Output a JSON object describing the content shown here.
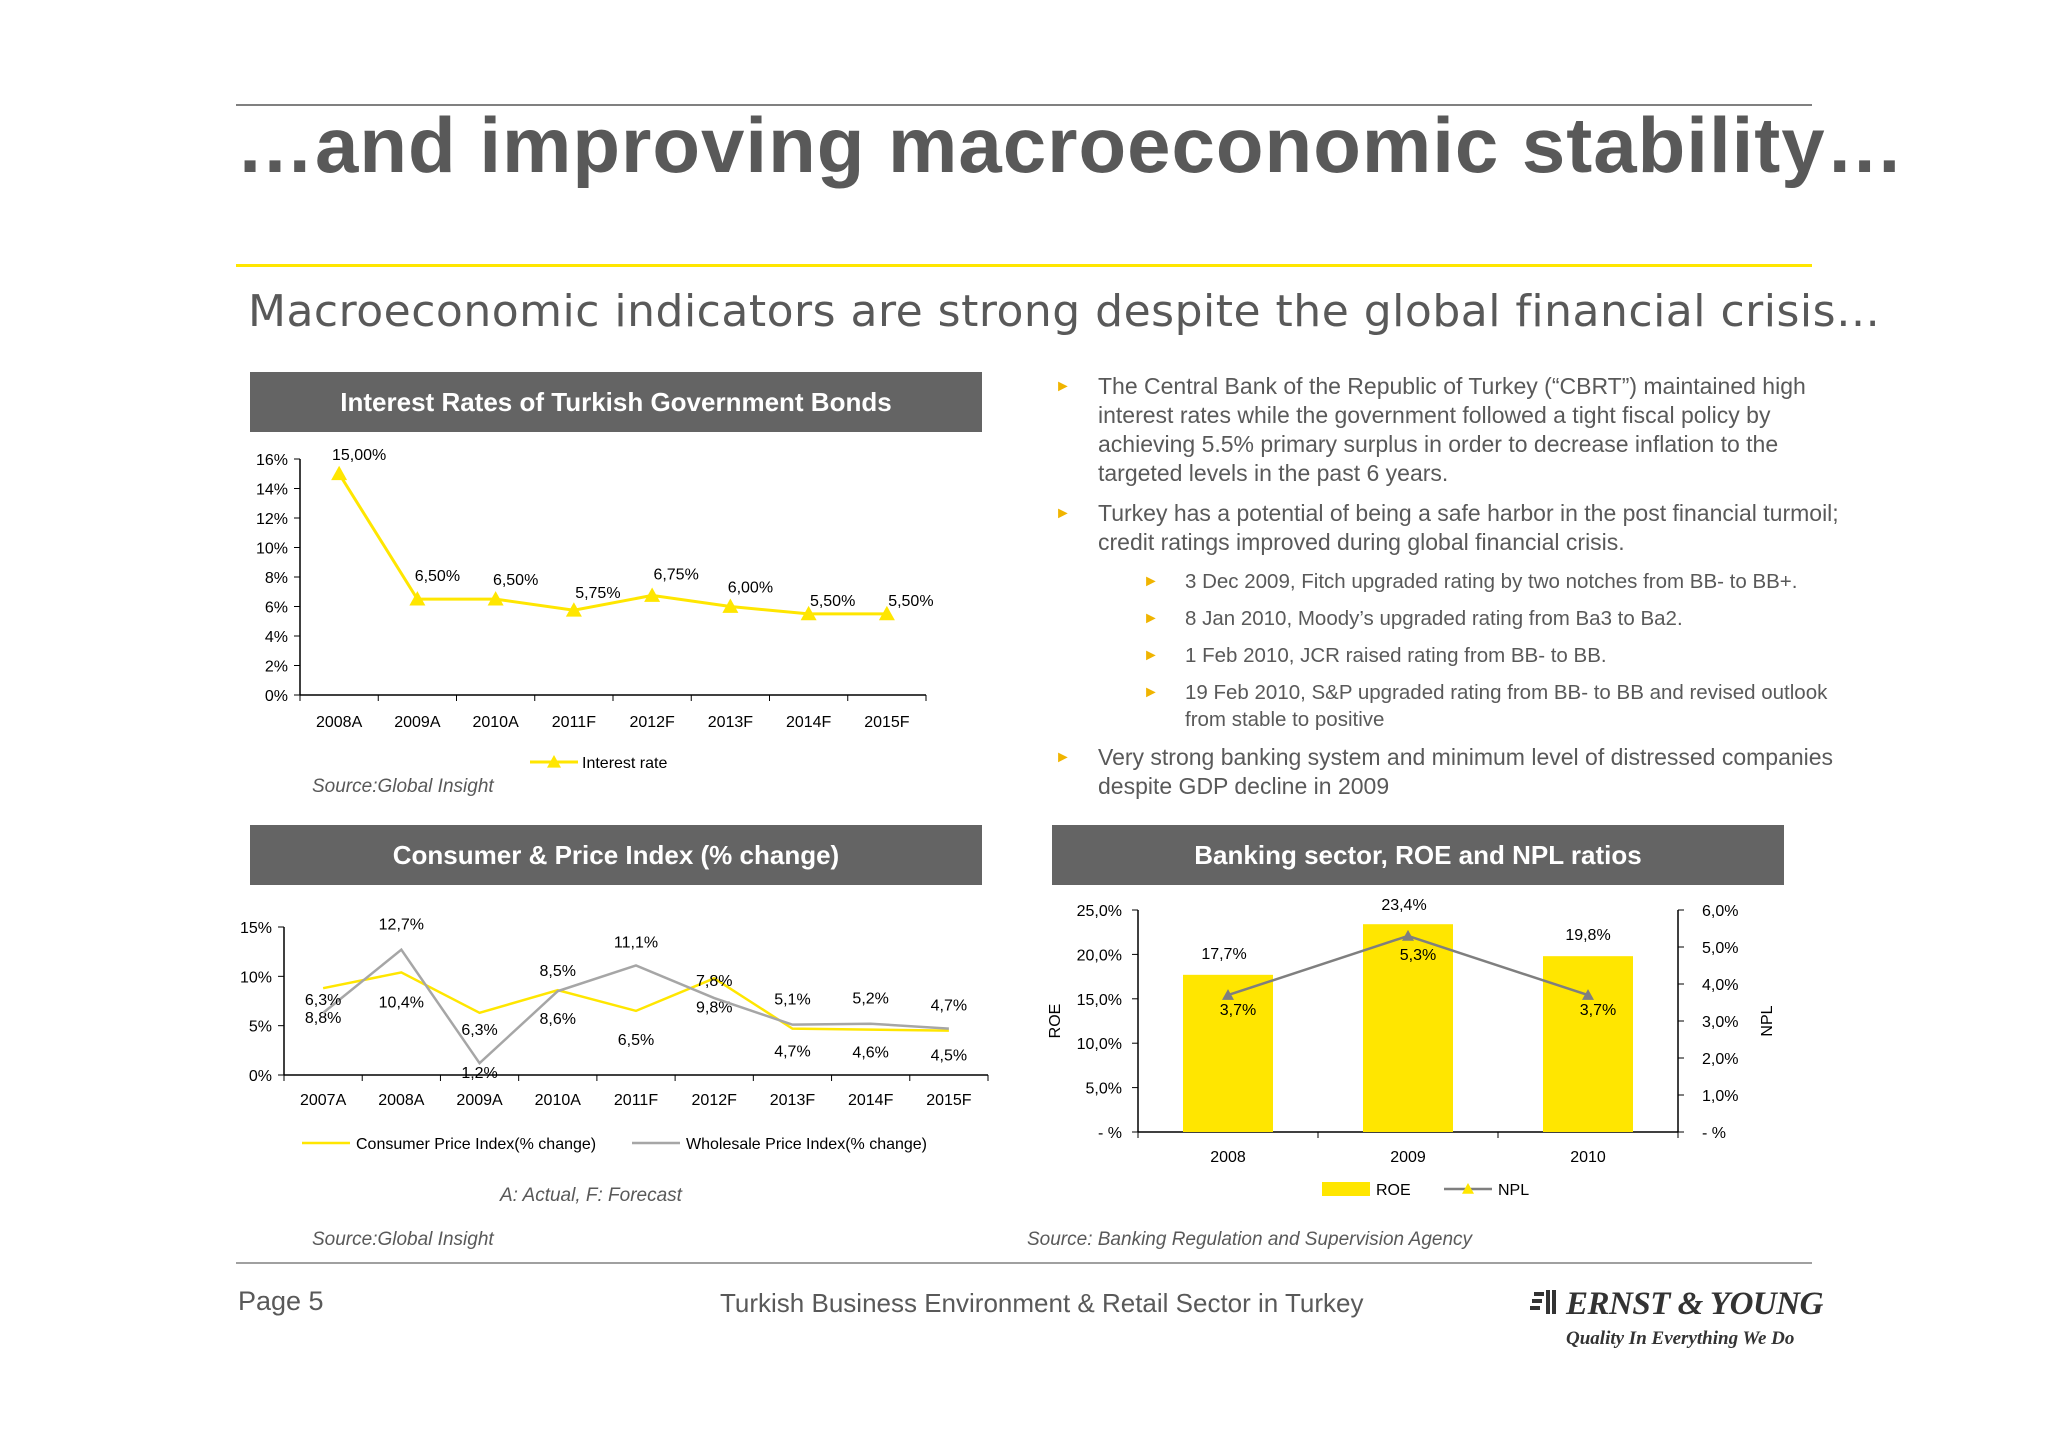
{
  "slide": {
    "title": "…and improving macroeconomic stability…",
    "subtitle": "Macroeconomic indicators are strong despite the global financial crisis…"
  },
  "panels": {
    "bonds": {
      "header": "Interest Rates of Turkish Government Bonds",
      "source": "Source:Global  Insight"
    },
    "cpi": {
      "header": "Consumer & Price Index (% change)",
      "note": "A: Actual,  F: Forecast",
      "source": "Source:Global  Insight"
    },
    "banking": {
      "header": "Banking sector, ROE and NPL ratios",
      "source": "Source:  Banking  Regulation  and  Supervision  Agency"
    }
  },
  "bullets": [
    {
      "text": "The Central Bank of the Republic of Turkey (“CBRT”) maintained high interest rates while the government followed a tight fiscal policy by achieving 5.5% primary surplus in order to decrease  inflation to the targeted levels in the past 6 years.",
      "sub": []
    },
    {
      "text": "Turkey has a potential of being a safe harbor in the post financial turmoil; credit ratings improved during global financial crisis.",
      "sub": [
        "3 Dec 2009, Fitch upgraded rating by two notches from BB- to BB+.",
        "8 Jan 2010, Moody’s upgraded rating from Ba3 to Ba2.",
        "1 Feb 2010, JCR raised rating from BB- to BB.",
        "19 Feb 2010, S&P upgraded rating from BB- to BB and revised outlook from stable to positive"
      ]
    },
    {
      "text": "Very strong banking system and minimum level of distressed companies despite GDP decline in 2009",
      "sub": []
    }
  ],
  "footer": {
    "page": "Page 5",
    "center": "Turkish Business Environment & Retail Sector in Turkey",
    "brand": "ERNST & YOUNG",
    "tagline": "Quality In Everything We Do"
  },
  "colors": {
    "yellow": "#ffe600",
    "gray_line": "#a6a6a6",
    "npl_line": "#7f7f7f",
    "header_bg": "#646464",
    "text": "#595959"
  },
  "chart_data": [
    {
      "type": "line",
      "categories": [
        "2008A",
        "2009A",
        "2010A",
        "2011F",
        "2012F",
        "2013F",
        "2014F",
        "2015F"
      ],
      "series": [
        {
          "name": "Interest rate",
          "values": [
            15.0,
            6.5,
            6.5,
            5.75,
            6.75,
            6.0,
            5.5,
            5.5
          ],
          "labels": [
            "15,00%",
            "6,50%",
            "6,50%",
            "5,75%",
            "6,75%",
            "6,00%",
            "5,50%",
            "5,50%"
          ]
        }
      ],
      "ylim": [
        0,
        16
      ],
      "yticks": [
        "0%",
        "2%",
        "4%",
        "6%",
        "8%",
        "10%",
        "12%",
        "14%",
        "16%"
      ],
      "legend": "bottom",
      "grid": false
    },
    {
      "type": "line",
      "categories": [
        "2007A",
        "2008A",
        "2009A",
        "2010A",
        "2011F",
        "2012F",
        "2013F",
        "2014F",
        "2015F"
      ],
      "series": [
        {
          "name": "Consumer Price Index(% change)",
          "values": [
            8.8,
            10.4,
            6.3,
            8.6,
            6.5,
            9.8,
            4.7,
            4.6,
            4.5
          ],
          "labels": [
            "8,8%",
            "10,4%",
            "6,3%",
            "8,6%",
            "6,5%",
            "9,8%",
            "4,7%",
            "4,6%",
            "4,5%"
          ]
        },
        {
          "name": "Wholesale Price Index(% change)",
          "values": [
            6.3,
            12.7,
            1.2,
            8.5,
            11.1,
            7.8,
            5.1,
            5.2,
            4.7
          ],
          "labels": [
            "6,3%",
            "12,7%",
            "1,2%",
            "8,5%",
            "11,1%",
            "7,8%",
            "5,1%",
            "5,2%",
            "4,7%"
          ]
        }
      ],
      "ylim": [
        0,
        15
      ],
      "yticks": [
        "0%",
        "5%",
        "10%",
        "15%"
      ],
      "legend": "bottom",
      "grid": false
    },
    {
      "type": "bar",
      "categories": [
        "2008",
        "2009",
        "2010"
      ],
      "series": [
        {
          "name": "ROE",
          "axis": "left",
          "values": [
            17.7,
            23.4,
            19.8
          ],
          "labels": [
            "17,7%",
            "23,4%",
            "19,8%"
          ]
        },
        {
          "name": "NPL",
          "axis": "right",
          "kind": "line",
          "values": [
            3.7,
            5.3,
            3.7
          ],
          "labels": [
            "3,7%",
            "5,3%",
            "3,7%"
          ]
        }
      ],
      "ylabel": "ROE",
      "y2label": "NPL",
      "ylim": [
        0,
        25
      ],
      "y2lim": [
        0,
        6
      ],
      "yticks": [
        "- %",
        "5,0%",
        "10,0%",
        "15,0%",
        "20,0%",
        "25,0%"
      ],
      "y2ticks": [
        "- %",
        "1,0%",
        "2,0%",
        "3,0%",
        "4,0%",
        "5,0%",
        "6,0%"
      ],
      "legend": "bottom",
      "grid": false
    }
  ]
}
